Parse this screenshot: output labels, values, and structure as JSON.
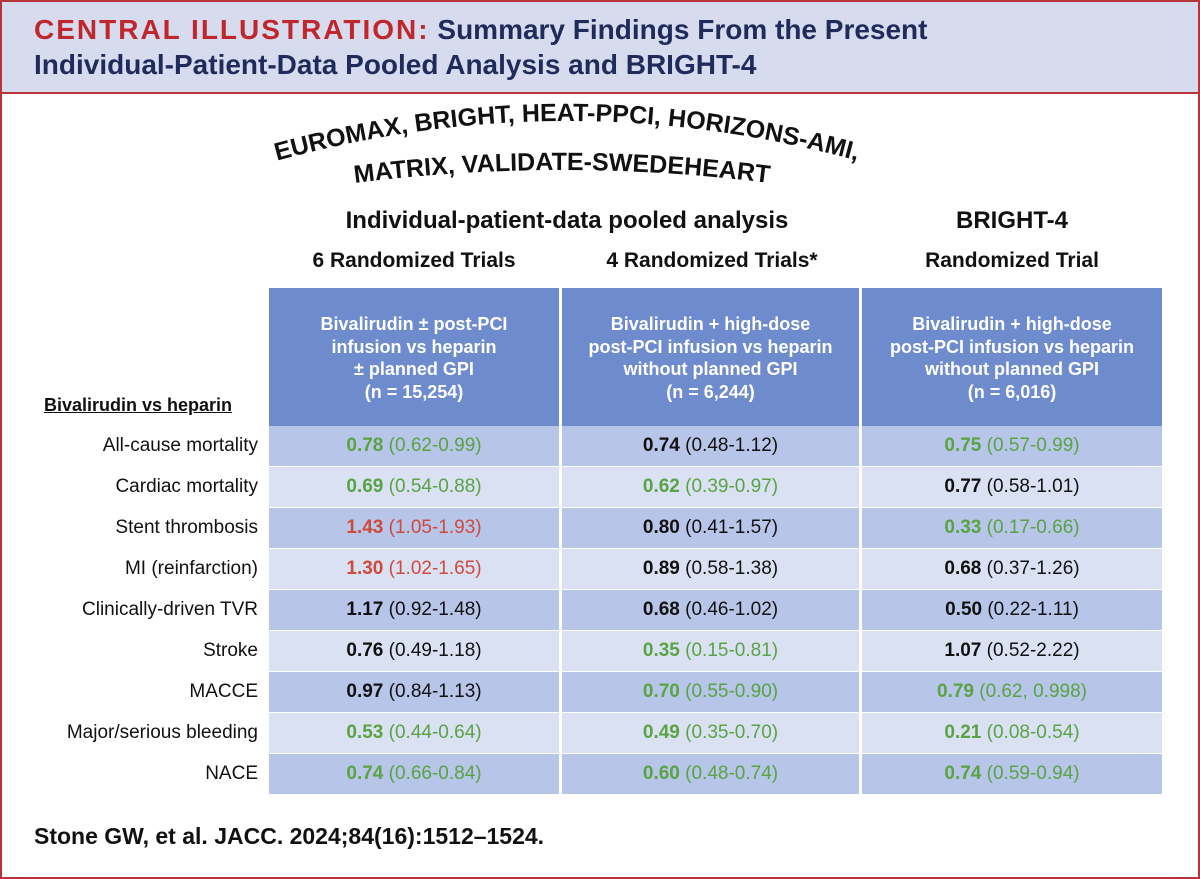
{
  "header": {
    "label": "CENTRAL ILLUSTRATION:",
    "title_line1": "Summary Findings From the Present",
    "title_line2": "Individual-Patient-Data Pooled Analysis and BRIGHT-4"
  },
  "trials_arc": {
    "line1": "EUROMAX, BRIGHT, HEAT-PPCI, HORIZONS-AMI,",
    "line2": "MATRIX, VALIDATE-SWEDEHEART"
  },
  "sections": {
    "pooled_title": "Individual-patient-data pooled analysis",
    "bright4_title": "BRIGHT-4",
    "col1_sub": "6 Randomized Trials",
    "col2_sub": "4 Randomized Trials*",
    "col3_sub": "Randomized Trial"
  },
  "columns": [
    {
      "lines": [
        "Bivalirudin ± post-PCI",
        "infusion vs heparin",
        "± planned GPI",
        "(n = 15,254)"
      ]
    },
    {
      "lines": [
        "Bivalirudin + high-dose",
        "post-PCI infusion vs heparin",
        "without planned GPI",
        "(n = 6,244)"
      ]
    },
    {
      "lines": [
        "Bivalirudin + high-dose",
        "post-PCI infusion vs heparin",
        "without planned GPI",
        "(n = 6,016)"
      ]
    }
  ],
  "row_header": "Bivalirudin vs heparin",
  "colors": {
    "green": "#5aa343",
    "red": "#d04a3c",
    "black": "#111111",
    "header_blue": "#6e8ccd",
    "border_red": "#b8333a"
  },
  "rows": [
    {
      "label": "All-cause mortality",
      "cells": [
        {
          "value": "0.78",
          "ci": "(0.62-0.99)",
          "color": "green"
        },
        {
          "value": "0.74",
          "ci": "(0.48-1.12)",
          "color": "black"
        },
        {
          "value": "0.75",
          "ci": "(0.57-0.99)",
          "color": "green"
        }
      ]
    },
    {
      "label": "Cardiac mortality",
      "cells": [
        {
          "value": "0.69",
          "ci": "(0.54-0.88)",
          "color": "green"
        },
        {
          "value": "0.62",
          "ci": "(0.39-0.97)",
          "color": "green"
        },
        {
          "value": "0.77",
          "ci": "(0.58-1.01)",
          "color": "black"
        }
      ]
    },
    {
      "label": "Stent thrombosis",
      "cells": [
        {
          "value": "1.43",
          "ci": "(1.05-1.93)",
          "color": "red"
        },
        {
          "value": "0.80",
          "ci": "(0.41-1.57)",
          "color": "black"
        },
        {
          "value": "0.33",
          "ci": "(0.17-0.66)",
          "color": "green"
        }
      ]
    },
    {
      "label": "MI (reinfarction)",
      "cells": [
        {
          "value": "1.30",
          "ci": "(1.02-1.65)",
          "color": "red"
        },
        {
          "value": "0.89",
          "ci": "(0.58-1.38)",
          "color": "black"
        },
        {
          "value": "0.68",
          "ci": "(0.37-1.26)",
          "color": "black"
        }
      ]
    },
    {
      "label": "Clinically-driven TVR",
      "cells": [
        {
          "value": "1.17",
          "ci": "(0.92-1.48)",
          "color": "black"
        },
        {
          "value": "0.68",
          "ci": "(0.46-1.02)",
          "color": "black"
        },
        {
          "value": "0.50",
          "ci": "(0.22-1.11)",
          "color": "black"
        }
      ]
    },
    {
      "label": "Stroke",
      "cells": [
        {
          "value": "0.76",
          "ci": "(0.49-1.18)",
          "color": "black"
        },
        {
          "value": "0.35",
          "ci": "(0.15-0.81)",
          "color": "green"
        },
        {
          "value": "1.07",
          "ci": "(0.52-2.22)",
          "color": "black"
        }
      ]
    },
    {
      "label": "MACCE",
      "cells": [
        {
          "value": "0.97",
          "ci": "(0.84-1.13)",
          "color": "black"
        },
        {
          "value": "0.70",
          "ci": "(0.55-0.90)",
          "color": "green"
        },
        {
          "value": "0.79",
          "ci": "(0.62, 0.998)",
          "color": "green"
        }
      ]
    },
    {
      "label": "Major/serious bleeding",
      "cells": [
        {
          "value": "0.53",
          "ci": "(0.44-0.64)",
          "color": "green"
        },
        {
          "value": "0.49",
          "ci": "(0.35-0.70)",
          "color": "green"
        },
        {
          "value": "0.21",
          "ci": "(0.08-0.54)",
          "color": "green"
        }
      ]
    },
    {
      "label": "NACE",
      "cells": [
        {
          "value": "0.74",
          "ci": "(0.66-0.84)",
          "color": "green"
        },
        {
          "value": "0.60",
          "ci": "(0.48-0.74)",
          "color": "green"
        },
        {
          "value": "0.74",
          "ci": " (0.59-0.94)",
          "color": "green"
        }
      ]
    }
  ],
  "citation": "Stone GW, et al. JACC. 2024;84(16):1512–1524."
}
